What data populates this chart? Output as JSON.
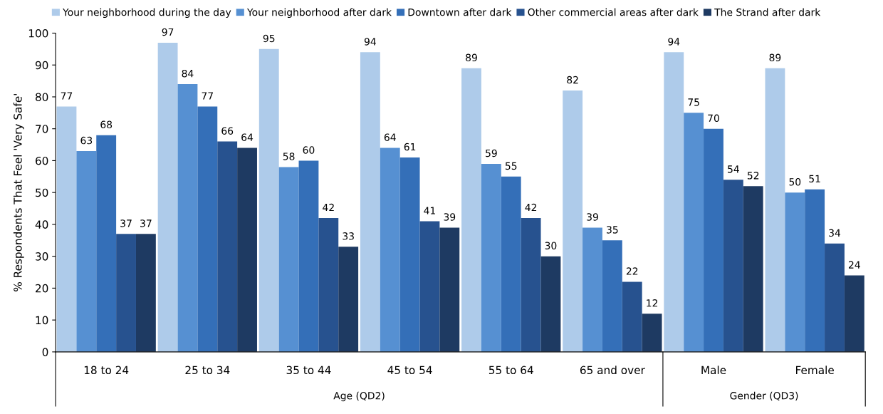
{
  "chart_data": {
    "type": "bar",
    "ylabel": "% Respondents That Feel 'Very Safe'",
    "categories": [
      "18 to 24",
      "25 to 34",
      "35 to 44",
      "45 to 54",
      "55 to 64",
      "65 and over",
      "Male",
      "Female"
    ],
    "series": [
      {
        "name": "Your neighborhood during the day",
        "color": "#aecbea",
        "values": [
          77,
          97,
          95,
          94,
          89,
          82,
          94,
          89
        ]
      },
      {
        "name": "Your neighborhood after dark",
        "color": "#5690d2",
        "values": [
          63,
          84,
          58,
          64,
          59,
          39,
          75,
          50
        ]
      },
      {
        "name": "Downtown after dark",
        "color": "#346fb8",
        "values": [
          68,
          77,
          60,
          61,
          55,
          35,
          70,
          51
        ]
      },
      {
        "name": "Other commercial areas after dark",
        "color": "#27528f",
        "values": [
          37,
          66,
          42,
          41,
          42,
          22,
          54,
          34
        ]
      },
      {
        "name": "The Strand after dark",
        "color": "#1e3a62",
        "values": [
          37,
          64,
          33,
          39,
          30,
          12,
          52,
          24
        ]
      }
    ],
    "ylim": [
      0,
      100
    ],
    "yticks": [
      0,
      10,
      20,
      30,
      40,
      50,
      60,
      70,
      80,
      90,
      100
    ],
    "data_labels": true,
    "grid": false,
    "legend": "top",
    "annotations": [
      "Age (QD2)",
      "Gender (QD3)"
    ]
  }
}
